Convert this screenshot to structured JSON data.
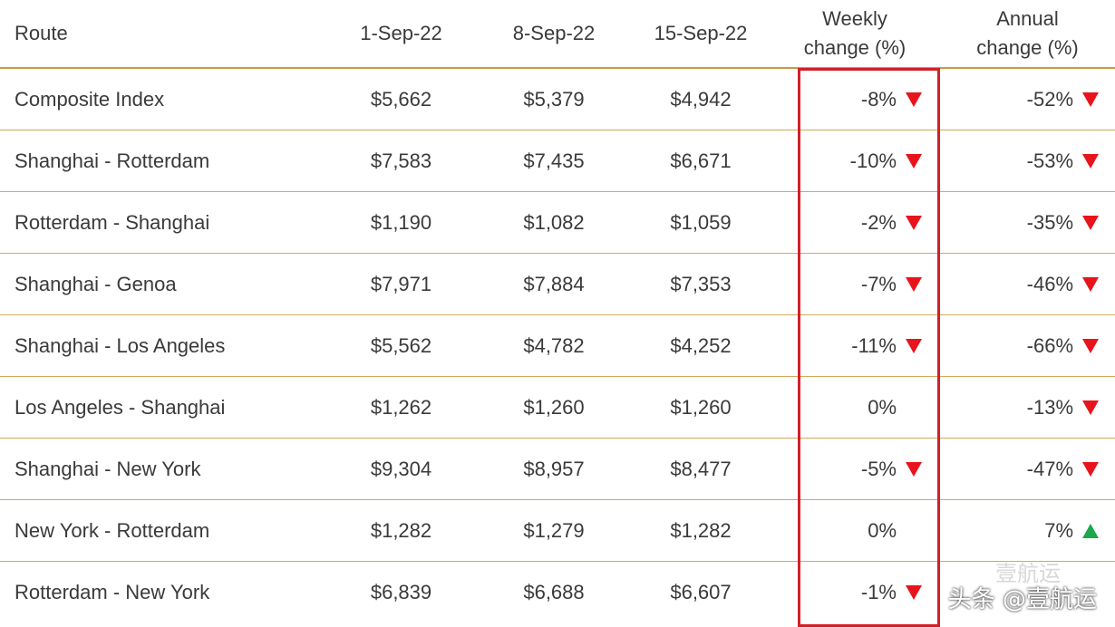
{
  "chart_data": {
    "type": "table",
    "columns": [
      "Route",
      "1-Sep-22",
      "8-Sep-22",
      "15-Sep-22",
      "Weekly change (%)",
      "Annual change (%)"
    ],
    "header": {
      "route": "Route",
      "d1": "1-Sep-22",
      "d2": "8-Sep-22",
      "d3": "15-Sep-22",
      "weekly": "Weekly change (%)",
      "annual": "Annual change (%)"
    },
    "rows": [
      {
        "route": "Composite Index",
        "d1": "$5,662",
        "d2": "$5,379",
        "d3": "$4,942",
        "weekly": "-8%",
        "weekly_dir": "down",
        "annual": "-52%",
        "annual_dir": "down"
      },
      {
        "route": "Shanghai - Rotterdam",
        "d1": "$7,583",
        "d2": "$7,435",
        "d3": "$6,671",
        "weekly": "-10%",
        "weekly_dir": "down",
        "annual": "-53%",
        "annual_dir": "down"
      },
      {
        "route": "Rotterdam - Shanghai",
        "d1": "$1,190",
        "d2": "$1,082",
        "d3": "$1,059",
        "weekly": "-2%",
        "weekly_dir": "down",
        "annual": "-35%",
        "annual_dir": "down"
      },
      {
        "route": "Shanghai - Genoa",
        "d1": "$7,971",
        "d2": "$7,884",
        "d3": "$7,353",
        "weekly": "-7%",
        "weekly_dir": "down",
        "annual": "-46%",
        "annual_dir": "down"
      },
      {
        "route": "Shanghai - Los Angeles",
        "d1": "$5,562",
        "d2": "$4,782",
        "d3": "$4,252",
        "weekly": "-11%",
        "weekly_dir": "down",
        "annual": "-66%",
        "annual_dir": "down"
      },
      {
        "route": "Los Angeles - Shanghai",
        "d1": "$1,262",
        "d2": "$1,260",
        "d3": "$1,260",
        "weekly": "0%",
        "weekly_dir": "none",
        "annual": "-13%",
        "annual_dir": "down"
      },
      {
        "route": "Shanghai - New York",
        "d1": "$9,304",
        "d2": "$8,957",
        "d3": "$8,477",
        "weekly": "-5%",
        "weekly_dir": "down",
        "annual": "-47%",
        "annual_dir": "down"
      },
      {
        "route": "New York - Rotterdam",
        "d1": "$1,282",
        "d2": "$1,279",
        "d3": "$1,282",
        "weekly": "0%",
        "weekly_dir": "none",
        "annual": "7%",
        "annual_dir": "up"
      },
      {
        "route": "Rotterdam - New York",
        "d1": "$6,839",
        "d2": "$6,688",
        "d3": "$6,607",
        "weekly": "-1%",
        "weekly_dir": "down",
        "annual": "",
        "annual_dir": "hidden"
      }
    ]
  },
  "colors": {
    "down": "#e8141c",
    "up": "#1aa84b",
    "rule": "#d3a95a",
    "highlight": "#d0202a"
  },
  "watermark": "头条 @壹航运",
  "watermark_ghost": "壹航运"
}
